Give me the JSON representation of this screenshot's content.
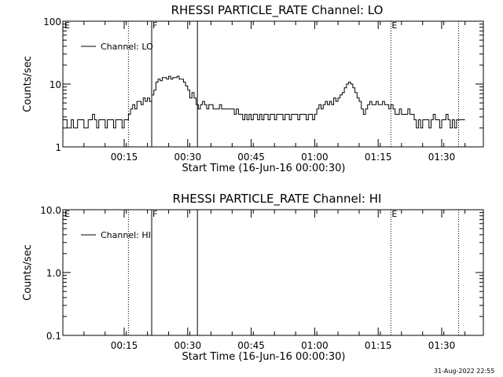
{
  "footer": {
    "timestamp": "31-Aug-2022 22:55"
  },
  "chart_data": [
    {
      "type": "line",
      "title": "RHESSI PARTICLE_RATE Channel: LO",
      "xlabel": "Start Time (16-Jun-16 00:00:30)",
      "ylabel": "Counts/sec",
      "y_scale": "log",
      "ylim": [
        1,
        100
      ],
      "ytick_labels": [
        "1",
        "10",
        "100"
      ],
      "xlim_minutes": [
        0,
        100
      ],
      "xtick_labels": [
        "00:15",
        "00:30",
        "00:45",
        "01:00",
        "01:15",
        "01:30"
      ],
      "legend": {
        "position": "top-left",
        "label": "Channel: LO"
      },
      "markers": [
        {
          "label": "E",
          "minute": 0,
          "style": "none"
        },
        {
          "label": "",
          "minute": 15.5,
          "style": "dotted"
        },
        {
          "label": "F",
          "minute": 21.0,
          "style": "solid"
        },
        {
          "label": "",
          "minute": 31.8,
          "style": "solid"
        },
        {
          "label": "E",
          "minute": 77.5,
          "style": "dotted"
        },
        {
          "label": "",
          "minute": 93.5,
          "style": "dotted"
        }
      ],
      "series": [
        {
          "name": "Channel: LO",
          "points": [
            [
              0,
              2.7
            ],
            [
              0.5,
              2.7
            ],
            [
              1,
              2
            ],
            [
              1.5,
              2
            ],
            [
              2,
              2.7
            ],
            [
              2.5,
              2
            ],
            [
              3,
              2
            ],
            [
              3.5,
              2.7
            ],
            [
              4,
              2.7
            ],
            [
              4.5,
              2.7
            ],
            [
              5,
              2
            ],
            [
              5.5,
              2
            ],
            [
              6,
              2.7
            ],
            [
              6.5,
              2.7
            ],
            [
              7,
              3.3
            ],
            [
              7.5,
              2.7
            ],
            [
              8,
              2
            ],
            [
              8.5,
              2.7
            ],
            [
              9,
              2.7
            ],
            [
              9.5,
              2.7
            ],
            [
              10,
              2
            ],
            [
              10.5,
              2.7
            ],
            [
              11,
              2.7
            ],
            [
              11.5,
              2.7
            ],
            [
              12,
              2
            ],
            [
              12.5,
              2.7
            ],
            [
              13,
              2.7
            ],
            [
              13.5,
              2.7
            ],
            [
              14,
              2
            ],
            [
              14.5,
              2.7
            ],
            [
              15,
              2.7
            ],
            [
              15.5,
              3.3
            ],
            [
              16,
              4
            ],
            [
              16.5,
              4.7
            ],
            [
              17,
              4
            ],
            [
              17.5,
              5.3
            ],
            [
              18,
              5.3
            ],
            [
              18.5,
              4.7
            ],
            [
              19,
              6
            ],
            [
              19.5,
              5.3
            ],
            [
              20,
              6
            ],
            [
              20.5,
              5.3
            ],
            [
              21,
              6.7
            ],
            [
              21.5,
              8
            ],
            [
              22,
              10.7
            ],
            [
              22.5,
              12
            ],
            [
              23,
              11.3
            ],
            [
              23.5,
              12.7
            ],
            [
              24,
              12.7
            ],
            [
              24.5,
              12
            ],
            [
              25,
              13.3
            ],
            [
              25.5,
              12
            ],
            [
              26,
              12.7
            ],
            [
              26.5,
              12.7
            ],
            [
              27,
              13.3
            ],
            [
              27.5,
              12
            ],
            [
              28,
              12
            ],
            [
              28.5,
              10.7
            ],
            [
              29,
              9.3
            ],
            [
              29.5,
              8
            ],
            [
              30,
              6
            ],
            [
              30.5,
              7.3
            ],
            [
              31,
              6
            ],
            [
              31.5,
              4.7
            ],
            [
              32,
              4
            ],
            [
              32.5,
              4.7
            ],
            [
              33,
              5.3
            ],
            [
              33.5,
              4.7
            ],
            [
              34,
              4
            ],
            [
              34.5,
              4.7
            ],
            [
              35,
              4.7
            ],
            [
              35.5,
              4
            ],
            [
              36,
              4
            ],
            [
              36.5,
              4
            ],
            [
              37,
              4.7
            ],
            [
              37.5,
              4
            ],
            [
              38,
              4
            ],
            [
              38.5,
              4
            ],
            [
              39,
              4
            ],
            [
              39.5,
              4
            ],
            [
              40,
              4
            ],
            [
              40.5,
              3.3
            ],
            [
              41,
              4
            ],
            [
              41.5,
              3.3
            ],
            [
              42,
              3.3
            ],
            [
              42.5,
              2.7
            ],
            [
              43,
              3.3
            ],
            [
              43.5,
              2.7
            ],
            [
              44,
              3.3
            ],
            [
              44.5,
              2.7
            ],
            [
              45,
              3.3
            ],
            [
              45.5,
              3.3
            ],
            [
              46,
              2.7
            ],
            [
              46.5,
              3.3
            ],
            [
              47,
              2.7
            ],
            [
              47.5,
              3.3
            ],
            [
              48,
              3.3
            ],
            [
              48.5,
              2.7
            ],
            [
              49,
              3.3
            ],
            [
              49.5,
              3.3
            ],
            [
              50,
              2.7
            ],
            [
              50.5,
              3.3
            ],
            [
              51,
              3.3
            ],
            [
              51.5,
              3.3
            ],
            [
              52,
              2.7
            ],
            [
              52.5,
              3.3
            ],
            [
              53,
              3.3
            ],
            [
              53.5,
              2.7
            ],
            [
              54,
              3.3
            ],
            [
              54.5,
              3.3
            ],
            [
              55,
              3.3
            ],
            [
              55.5,
              2.7
            ],
            [
              56,
              3.3
            ],
            [
              56.5,
              3.3
            ],
            [
              57,
              3.3
            ],
            [
              57.5,
              2.7
            ],
            [
              58,
              3.3
            ],
            [
              58.5,
              3.3
            ],
            [
              59,
              2.7
            ],
            [
              59.5,
              3.3
            ],
            [
              60,
              4
            ],
            [
              60.5,
              4.7
            ],
            [
              61,
              4
            ],
            [
              61.5,
              4.7
            ],
            [
              62,
              5.3
            ],
            [
              62.5,
              4.7
            ],
            [
              63,
              5.3
            ],
            [
              63.5,
              4.7
            ],
            [
              64,
              6
            ],
            [
              64.5,
              5.3
            ],
            [
              65,
              6
            ],
            [
              65.5,
              6.7
            ],
            [
              66,
              7.3
            ],
            [
              66.5,
              8.7
            ],
            [
              67,
              10
            ],
            [
              67.5,
              10.7
            ],
            [
              68,
              10
            ],
            [
              68.5,
              8.7
            ],
            [
              69,
              7.3
            ],
            [
              69.5,
              6
            ],
            [
              70,
              5.3
            ],
            [
              70.5,
              4
            ],
            [
              71,
              3.3
            ],
            [
              71.5,
              4
            ],
            [
              72,
              4.7
            ],
            [
              72.5,
              5.3
            ],
            [
              73,
              4.7
            ],
            [
              73.5,
              4.7
            ],
            [
              74,
              5.3
            ],
            [
              74.5,
              4.7
            ],
            [
              75,
              4.7
            ],
            [
              75.5,
              5.3
            ],
            [
              76,
              4.7
            ],
            [
              76.5,
              4.7
            ],
            [
              77,
              4
            ],
            [
              77.5,
              4.7
            ],
            [
              78,
              4
            ],
            [
              78.5,
              3.3
            ],
            [
              79,
              3.3
            ],
            [
              79.5,
              4
            ],
            [
              80,
              3.3
            ],
            [
              80.5,
              3.3
            ],
            [
              81,
              3.3
            ],
            [
              81.5,
              4
            ],
            [
              82,
              3.3
            ],
            [
              82.5,
              3.3
            ],
            [
              83,
              2.7
            ],
            [
              83.5,
              2
            ],
            [
              84,
              2.7
            ],
            [
              84.5,
              2
            ],
            [
              85,
              2.7
            ],
            [
              85.5,
              2.7
            ],
            [
              86,
              2.7
            ],
            [
              86.5,
              2
            ],
            [
              87,
              2.7
            ],
            [
              87.5,
              3.3
            ],
            [
              88,
              2.7
            ],
            [
              88.5,
              2.7
            ],
            [
              89,
              2
            ],
            [
              89.5,
              2.7
            ],
            [
              90,
              2.7
            ],
            [
              90.5,
              3.3
            ],
            [
              91,
              2.7
            ],
            [
              91.5,
              2
            ],
            [
              92,
              2.7
            ],
            [
              92.5,
              2
            ],
            [
              93,
              2.7
            ],
            [
              93.5,
              2.7
            ],
            [
              94,
              2.7
            ],
            [
              94.5,
              2.7
            ]
          ]
        }
      ]
    },
    {
      "type": "line",
      "title": "RHESSI PARTICLE_RATE Channel: HI",
      "xlabel": "Start Time (16-Jun-16 00:00:30)",
      "ylabel": "Counts/sec",
      "y_scale": "log",
      "ylim": [
        0.1,
        10
      ],
      "ytick_labels": [
        "0.1",
        "1.0",
        "10.0"
      ],
      "xlim_minutes": [
        0,
        100
      ],
      "xtick_labels": [
        "00:15",
        "00:30",
        "00:45",
        "01:00",
        "01:15",
        "01:30"
      ],
      "legend": {
        "position": "top-left",
        "label": "Channel: HI"
      },
      "markers": [
        {
          "label": "E",
          "minute": 0,
          "style": "none"
        },
        {
          "label": "",
          "minute": 15.5,
          "style": "dotted"
        },
        {
          "label": "F",
          "minute": 21.0,
          "style": "solid"
        },
        {
          "label": "",
          "minute": 31.8,
          "style": "solid"
        },
        {
          "label": "E",
          "minute": 77.5,
          "style": "dotted"
        },
        {
          "label": "",
          "minute": 93.5,
          "style": "dotted"
        }
      ],
      "series": [
        {
          "name": "Channel: HI",
          "points": []
        }
      ]
    }
  ]
}
